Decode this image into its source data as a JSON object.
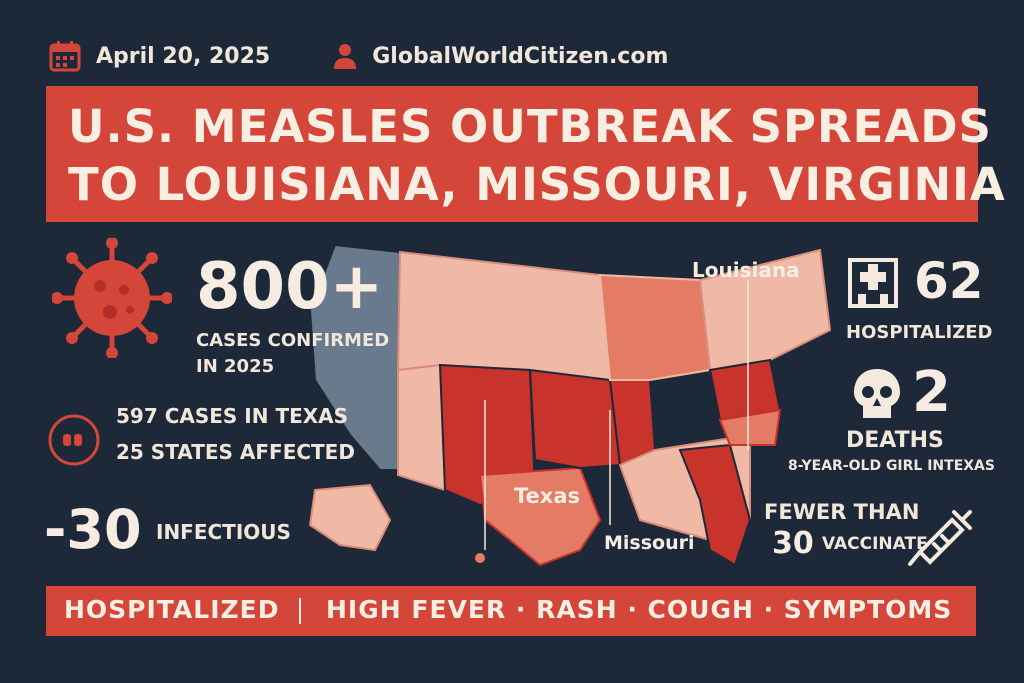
{
  "header": {
    "date": "April 20, 2025",
    "site": "GlobalWorldCitizen.com",
    "date_icon": "calendar-icon",
    "site_icon": "person-icon"
  },
  "title": {
    "line1": "U.S. MEASLES OUTBREAK SPREADS",
    "line2": "TO LOUISIANA, MISSOURI, VIRGINIA"
  },
  "left": {
    "cases_value": "800+",
    "cases_label_1": "CASES CONFIRMED",
    "cases_label_2": "IN 2025",
    "texas_cases": "597 CASES IN TEXAS",
    "states_affected": "25 STATES AFFECTED",
    "infectious_value": "-30",
    "infectious_label": "INFECTIOUS",
    "virus_icon": "virus-icon",
    "cough_icon": "cough-icon"
  },
  "right": {
    "hospitalized_value": "62",
    "hospitalized_label": "HOSPITALIZED",
    "deaths_value": "2",
    "deaths_label": "DEATHS",
    "deaths_note": "8-YEAR-OLD GIRL INTEXAS",
    "vaccinate_line1": "FEWER THAN",
    "vaccinate_value": "30",
    "vaccinate_label": "VACCINATE",
    "hospital_icon": "hospital-icon",
    "skull_icon": "skull-icon",
    "syringe_icon": "syringe-icon"
  },
  "map": {
    "label_louisiana": "Louisiana",
    "label_texas": "Texas",
    "label_missouri": "Missouri",
    "colors": {
      "light": "#f0b9a6",
      "mid": "#e47b65",
      "dark": "#c8332b",
      "grey": "#6a7a8d"
    }
  },
  "bottom": {
    "left": "HOSPITALIZED",
    "right": "HIGH FEVER · RASH · COUGH · SYMPTOMS"
  },
  "colors": {
    "accent": "#d5463a",
    "background": "#1d2838",
    "text": "#f3e9de"
  }
}
